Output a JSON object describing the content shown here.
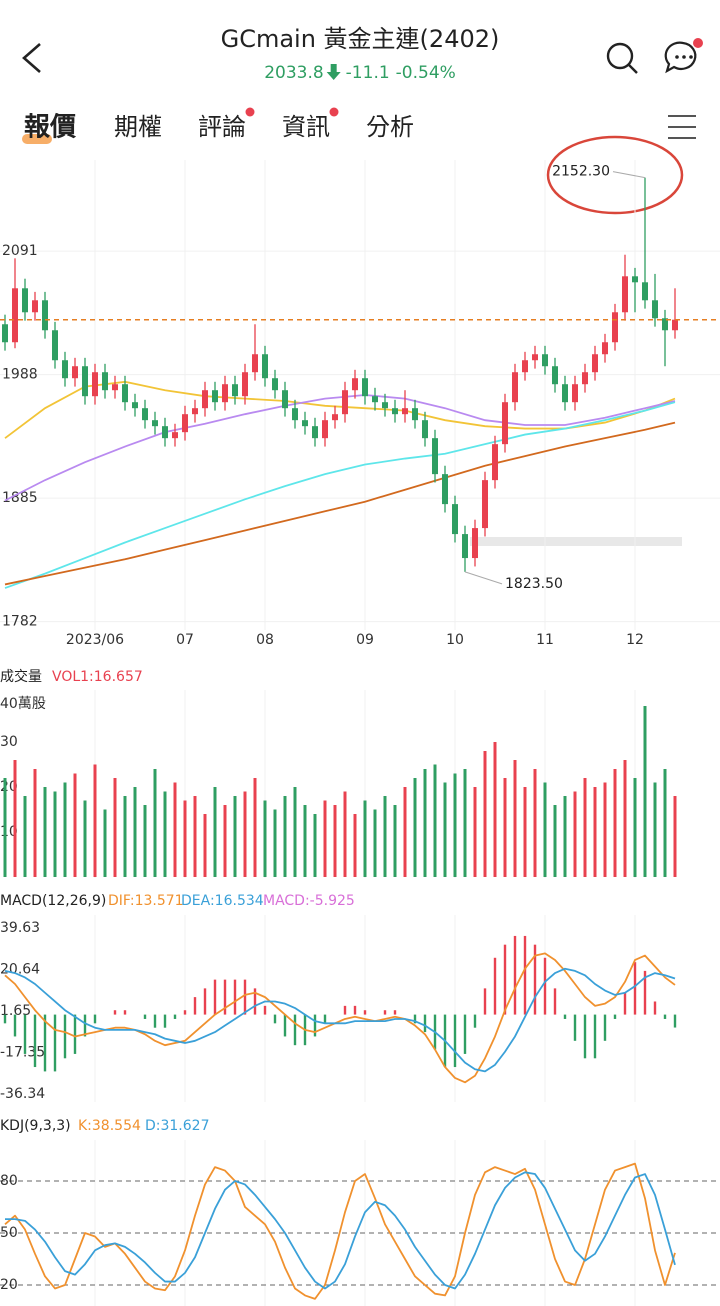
{
  "header": {
    "title": "GCmain  黃金主連(2402)",
    "price": 2033.8,
    "change": -11.1,
    "change_pct": "-0.54%",
    "tabs": [
      "報價",
      "期權",
      "評論",
      "資訊",
      "分析"
    ]
  },
  "chart_data": [
    {
      "type": "candlestick",
      "up_color": "#e8414f",
      "down_color": "#2f9e62",
      "ylim": [
        1775,
        2167
      ],
      "yticks": [
        2091,
        1988,
        1885,
        1782
      ],
      "grid": true,
      "xticks": [
        {
          "value": 9,
          "label": "2023/06"
        },
        {
          "value": 18,
          "label": "07"
        },
        {
          "value": 26,
          "label": "08"
        },
        {
          "value": 36,
          "label": "09"
        },
        {
          "value": 45,
          "label": "10"
        },
        {
          "value": 54,
          "label": "11"
        },
        {
          "value": 63,
          "label": "12"
        }
      ],
      "candles": [
        [
          2030,
          2038,
          2008,
          2015
        ],
        [
          2015,
          2085,
          2010,
          2060
        ],
        [
          2060,
          2068,
          2033,
          2040
        ],
        [
          2040,
          2057,
          2033,
          2050
        ],
        [
          2050,
          2057,
          2018,
          2025
        ],
        [
          2025,
          2032,
          1993,
          2000
        ],
        [
          2000,
          2007,
          1978,
          1985
        ],
        [
          1985,
          2002,
          1978,
          1995
        ],
        [
          1995,
          2002,
          1963,
          1970
        ],
        [
          1970,
          1997,
          1963,
          1990
        ],
        [
          1990,
          1997,
          1968,
          1975
        ],
        [
          1975,
          1987,
          1968,
          1980
        ],
        [
          1980,
          1987,
          1958,
          1965
        ],
        [
          1965,
          1972,
          1953,
          1960
        ],
        [
          1960,
          1967,
          1943,
          1950
        ],
        [
          1950,
          1957,
          1938,
          1945
        ],
        [
          1945,
          1952,
          1928,
          1935
        ],
        [
          1935,
          1947,
          1928,
          1940
        ],
        [
          1940,
          1962,
          1933,
          1955
        ],
        [
          1955,
          1967,
          1948,
          1960
        ],
        [
          1960,
          1982,
          1953,
          1975
        ],
        [
          1975,
          1982,
          1958,
          1965
        ],
        [
          1965,
          1987,
          1958,
          1980
        ],
        [
          1980,
          1987,
          1963,
          1970
        ],
        [
          1970,
          1997,
          1963,
          1990
        ],
        [
          1990,
          2030,
          1983,
          2005
        ],
        [
          2005,
          2012,
          1978,
          1985
        ],
        [
          1985,
          1992,
          1968,
          1975
        ],
        [
          1975,
          1982,
          1953,
          1960
        ],
        [
          1960,
          1967,
          1943,
          1950
        ],
        [
          1950,
          1957,
          1938,
          1945
        ],
        [
          1945,
          1952,
          1928,
          1935
        ],
        [
          1935,
          1957,
          1928,
          1950
        ],
        [
          1950,
          1962,
          1943,
          1955
        ],
        [
          1955,
          1982,
          1948,
          1975
        ],
        [
          1975,
          1992,
          1968,
          1985
        ],
        [
          1985,
          1992,
          1963,
          1970
        ],
        [
          1970,
          1977,
          1958,
          1965
        ],
        [
          1965,
          1972,
          1953,
          1960
        ],
        [
          1960,
          1967,
          1948,
          1955
        ],
        [
          1955,
          1975,
          1948,
          1960
        ],
        [
          1960,
          1967,
          1943,
          1950
        ],
        [
          1950,
          1957,
          1928,
          1935
        ],
        [
          1935,
          1942,
          1898,
          1905
        ],
        [
          1905,
          1912,
          1873,
          1880
        ],
        [
          1880,
          1887,
          1848,
          1855
        ],
        [
          1855,
          1862,
          1823.5,
          1835
        ],
        [
          1835,
          1867,
          1828,
          1860
        ],
        [
          1860,
          1907,
          1853,
          1900
        ],
        [
          1900,
          1937,
          1893,
          1930
        ],
        [
          1930,
          1972,
          1923,
          1965
        ],
        [
          1965,
          1997,
          1958,
          1990
        ],
        [
          1990,
          2007,
          1983,
          2000
        ],
        [
          2000,
          2012,
          1993,
          2005
        ],
        [
          2005,
          2012,
          1988,
          1995
        ],
        [
          1995,
          2002,
          1973,
          1980
        ],
        [
          1980,
          1987,
          1958,
          1965
        ],
        [
          1965,
          1987,
          1958,
          1980
        ],
        [
          1980,
          1997,
          1973,
          1990
        ],
        [
          1990,
          2012,
          1983,
          2005
        ],
        [
          2005,
          2022,
          1998,
          2015
        ],
        [
          2015,
          2047,
          2008,
          2040
        ],
        [
          2040,
          2088,
          2033,
          2070
        ],
        [
          2070,
          2077,
          2040,
          2065
        ],
        [
          2065,
          2152.3,
          2043,
          2050
        ],
        [
          2050,
          2072,
          2028,
          2035
        ],
        [
          2035,
          2042,
          1995,
          2025
        ],
        [
          2025,
          2060,
          2018,
          2033.8
        ]
      ],
      "ma_x": [
        0,
        4,
        8,
        12,
        16,
        20,
        24,
        28,
        32,
        36,
        40,
        44,
        48,
        52,
        56,
        60,
        64,
        67
      ],
      "series": [
        {
          "color": "#f2c437",
          "values": [
            1935,
            1960,
            1978,
            1982,
            1975,
            1970,
            1968,
            1966,
            1962,
            1960,
            1958,
            1950,
            1945,
            1943,
            1943,
            1948,
            1958,
            1968
          ]
        },
        {
          "color": "#b98af0",
          "values": [
            1883,
            1900,
            1915,
            1928,
            1940,
            1947,
            1955,
            1962,
            1968,
            1971,
            1968,
            1960,
            1950,
            1946,
            1946,
            1952,
            1960,
            1966
          ]
        },
        {
          "color": "#5ee6ea",
          "values": [
            1810,
            1822,
            1835,
            1848,
            1860,
            1872,
            1884,
            1895,
            1905,
            1913,
            1918,
            1922,
            1930,
            1938,
            1943,
            1950,
            1958,
            1965
          ]
        },
        {
          "color": "#d2691e",
          "values": [
            1813,
            1820,
            1827,
            1834,
            1842,
            1850,
            1858,
            1866,
            1874,
            1882,
            1892,
            1902,
            1912,
            1920,
            1928,
            1935,
            1942,
            1948
          ]
        }
      ],
      "annotations": [
        {
          "value": 2152.3,
          "label": "2152.30",
          "index": 64
        },
        {
          "value": 1823.5,
          "label": "1823.50",
          "index": 46
        }
      ]
    },
    {
      "type": "bar",
      "title": "成交量",
      "legend": "VOL1:16.657",
      "legend_color": "#e8414f",
      "unit_label": "40萬股",
      "ylim": [
        0,
        40
      ],
      "yticks": [
        30,
        20,
        10
      ],
      "values": [
        22,
        26,
        18,
        24,
        20,
        19,
        21,
        23,
        17,
        25,
        15,
        22,
        18,
        20,
        16,
        24,
        19,
        21,
        17,
        18,
        14,
        20,
        16,
        18,
        19,
        22,
        17,
        15,
        18,
        20,
        16,
        14,
        17,
        16,
        19,
        14,
        17,
        15,
        18,
        16,
        20,
        22,
        24,
        25,
        21,
        23,
        24,
        20,
        28,
        30,
        22,
        26,
        20,
        24,
        21,
        16,
        18,
        19,
        22,
        20,
        21,
        24,
        26,
        22,
        38,
        21,
        24,
        18
      ]
    },
    {
      "type": "macd",
      "title": "MACD(12,26,9)",
      "ylim": [
        -36.34,
        39.63
      ],
      "yticks": [
        39.63,
        20.64,
        1.65,
        -17.35,
        -36.34
      ],
      "series": [
        {
          "legend": "DIF:13.571",
          "color": "#f0912e",
          "values": [
            18,
            14,
            8,
            2,
            -3,
            -7,
            -8,
            -10,
            -9,
            -8,
            -7,
            -6,
            -6,
            -7,
            -9,
            -12,
            -14,
            -13,
            -12,
            -8,
            -4,
            0,
            3,
            6,
            9,
            10,
            8,
            4,
            0,
            -4,
            -7,
            -8,
            -6,
            -4,
            -2,
            -1,
            -2,
            -3,
            -2,
            -1,
            -2,
            -5,
            -9,
            -16,
            -24,
            -29,
            -31,
            -28,
            -20,
            -10,
            2,
            12,
            21,
            27,
            28,
            25,
            20,
            14,
            8,
            4,
            5,
            8,
            15,
            25,
            27,
            22,
            17,
            13.571
          ]
        },
        {
          "legend": "DEA:16.534",
          "color": "#3aa0d8",
          "values": [
            20,
            19,
            17,
            14,
            10,
            6,
            2,
            -1,
            -4,
            -6,
            -7,
            -7,
            -7,
            -7,
            -8,
            -9,
            -11,
            -12,
            -13,
            -12,
            -10,
            -8,
            -5,
            -2,
            1,
            4,
            6,
            6,
            5,
            3,
            0,
            -3,
            -4,
            -4,
            -4,
            -3,
            -3,
            -3,
            -3,
            -2,
            -2,
            -3,
            -5,
            -8,
            -12,
            -17,
            -22,
            -25,
            -26,
            -23,
            -17,
            -10,
            -1,
            8,
            15,
            19,
            21,
            20,
            18,
            14,
            11,
            9,
            10,
            13,
            17,
            19,
            18,
            16.534
          ]
        }
      ],
      "histogram": {
        "legend": "MACD:-5.925",
        "color": "#d86fd8",
        "up_color": "#e8414f",
        "down_color": "#2f9e62",
        "values": [
          -4,
          -10,
          -18,
          -24,
          -26,
          -26,
          -20,
          -18,
          -10,
          -4,
          0,
          2,
          2,
          0,
          -2,
          -6,
          -6,
          -2,
          2,
          8,
          12,
          16,
          16,
          16,
          16,
          12,
          4,
          -4,
          -10,
          -14,
          -14,
          -10,
          -4,
          0,
          4,
          4,
          2,
          0,
          2,
          2,
          0,
          -4,
          -8,
          -16,
          -24,
          -24,
          -18,
          -6,
          12,
          26,
          32,
          36,
          36,
          32,
          26,
          12,
          -2,
          -12,
          -20,
          -20,
          -12,
          -2,
          10,
          24,
          20,
          6,
          -2,
          -5.925
        ]
      }
    },
    {
      "type": "line",
      "title": "KDJ(9,3,3)",
      "ylim": [
        0,
        100
      ],
      "yticks": [
        80,
        50,
        20
      ],
      "series": [
        {
          "legend": "K:38.554",
          "color": "#f0912e",
          "values": [
            55,
            60,
            52,
            38,
            25,
            18,
            20,
            35,
            50,
            48,
            42,
            44,
            38,
            30,
            22,
            18,
            17,
            25,
            40,
            60,
            78,
            88,
            86,
            80,
            65,
            60,
            55,
            45,
            30,
            18,
            14,
            12,
            20,
            40,
            62,
            80,
            84,
            70,
            55,
            45,
            35,
            25,
            20,
            15,
            14,
            25,
            50,
            72,
            85,
            88,
            86,
            84,
            87,
            75,
            55,
            35,
            22,
            20,
            35,
            55,
            75,
            86,
            88,
            90,
            70,
            40,
            20,
            38.554
          ]
        },
        {
          "legend": "D:31.627",
          "color": "#3aa0d8",
          "values": [
            58,
            58,
            57,
            52,
            45,
            36,
            28,
            26,
            32,
            40,
            43,
            44,
            42,
            38,
            33,
            27,
            22,
            22,
            27,
            36,
            50,
            64,
            75,
            80,
            78,
            72,
            65,
            58,
            50,
            40,
            30,
            22,
            18,
            22,
            32,
            48,
            62,
            68,
            66,
            60,
            52,
            42,
            34,
            26,
            20,
            18,
            26,
            38,
            52,
            66,
            76,
            82,
            85,
            84,
            76,
            64,
            52,
            40,
            34,
            38,
            48,
            60,
            72,
            82,
            84,
            72,
            52,
            31.627
          ]
        }
      ]
    }
  ]
}
